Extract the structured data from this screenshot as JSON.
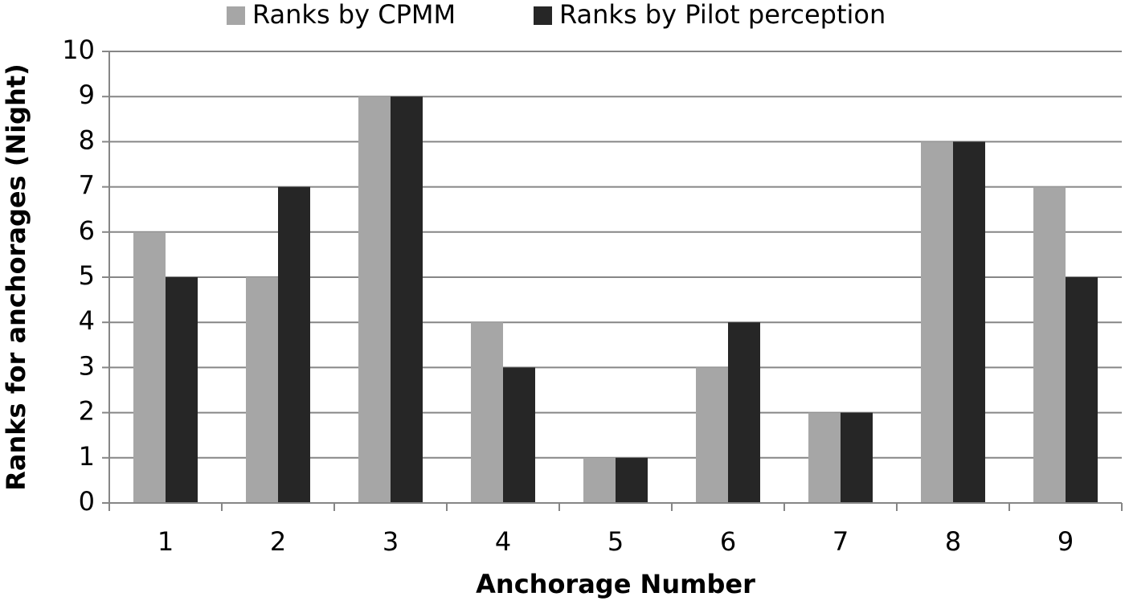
{
  "chart_data": {
    "type": "bar",
    "x_label": "Anchorage Number",
    "y_label": "Ranks for anchorages (Night)",
    "categories": [
      "1",
      "2",
      "3",
      "4",
      "5",
      "6",
      "7",
      "8",
      "9"
    ],
    "series": [
      {
        "name": "Ranks by CPMM",
        "color": "#a6a6a6",
        "values": [
          6,
          5,
          9,
          4,
          1,
          3,
          2,
          8,
          7
        ]
      },
      {
        "name": "Ranks by Pilot perception",
        "color": "#262626",
        "values": [
          5,
          7,
          9,
          3,
          1,
          4,
          2,
          8,
          5
        ]
      }
    ],
    "ylim": [
      0,
      10
    ],
    "yticks": [
      0,
      1,
      2,
      3,
      4,
      5,
      6,
      7,
      8,
      9,
      10
    ],
    "grid": true,
    "legend": "top"
  }
}
